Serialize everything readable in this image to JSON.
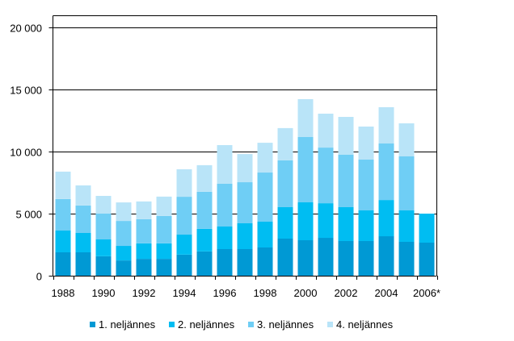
{
  "chart_data": {
    "type": "bar",
    "stacked": true,
    "title": "",
    "xlabel": "",
    "ylabel": "",
    "ylim": [
      0,
      21000
    ],
    "yticks": [
      0,
      5000,
      10000,
      15000,
      20000
    ],
    "ytick_labels": [
      "0",
      "5 000",
      "10 000",
      "15 000",
      "20 000"
    ],
    "grid": true,
    "legend_position": "bottom",
    "categories": [
      "1988",
      "1989",
      "1990",
      "1991",
      "1992",
      "1993",
      "1994",
      "1995",
      "1996",
      "1997",
      "1998",
      "1999",
      "2000",
      "2001",
      "2002",
      "2003",
      "2004",
      "2005",
      "2006*"
    ],
    "xtick_labels": [
      "1988",
      "",
      "1990",
      "",
      "1992",
      "",
      "1994",
      "",
      "1996",
      "",
      "1998",
      "",
      "2000",
      "",
      "2002",
      "",
      "2004",
      "",
      "2006*"
    ],
    "series": [
      {
        "name": "1. neljännes",
        "color": "#0099D4",
        "values": [
          1880,
          1880,
          1560,
          1230,
          1360,
          1360,
          1690,
          1950,
          2140,
          2140,
          2270,
          2990,
          2860,
          3050,
          2790,
          2790,
          3180,
          2730,
          2660
        ]
      },
      {
        "name": "2. neljännes",
        "color": "#00BDF2",
        "values": [
          1760,
          1560,
          1360,
          1170,
          1240,
          1240,
          1620,
          1820,
          1820,
          2080,
          2080,
          2530,
          3050,
          2790,
          2730,
          2470,
          2920,
          2530,
          2340
        ]
      },
      {
        "name": "3. neljännes",
        "color": "#6FCEF5",
        "values": [
          2530,
          2210,
          2080,
          2010,
          1950,
          2210,
          3050,
          2990,
          3440,
          3310,
          3960,
          3770,
          5260,
          4480,
          4220,
          4090,
          4550,
          4350,
          null
        ]
      },
      {
        "name": "4. neljännes",
        "color": "#B9E4F8",
        "values": [
          2210,
          1620,
          1430,
          1490,
          1430,
          1560,
          2210,
          2140,
          3120,
          2270,
          2400,
          2600,
          3050,
          2730,
          3050,
          2660,
          2920,
          2660,
          null
        ]
      }
    ]
  }
}
